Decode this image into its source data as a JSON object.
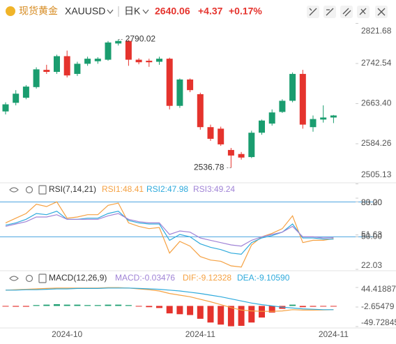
{
  "header": {
    "name": "现货黄金",
    "symbol": "XAUUSD",
    "period": "日K",
    "price": "2640.06",
    "change": "+4.37",
    "change_pct": "+0.17%"
  },
  "chart_data": [
    {
      "type": "candlestick",
      "up_color": "#1a9d6f",
      "down_color": "#e5332d",
      "open": [
        2648,
        2665,
        2675,
        2696,
        2730,
        2726,
        2757,
        2722,
        2742,
        2747,
        2750,
        2782,
        2787,
        2750,
        2748,
        2746,
        2752,
        2659,
        2711,
        2682,
        2617,
        2614,
        2572,
        2564,
        2558,
        2606,
        2624,
        2647,
        2669,
        2722,
        2617,
        2632,
        2636
      ],
      "high": [
        2666,
        2690,
        2700,
        2735,
        2740,
        2760,
        2768,
        2746,
        2756,
        2755,
        2787,
        2790.02,
        2789,
        2753,
        2752,
        2756,
        2754,
        2713,
        2713,
        2685,
        2622,
        2618,
        2576,
        2568,
        2610,
        2632,
        2652,
        2672,
        2725,
        2730,
        2640,
        2660,
        2641
      ],
      "low": [
        2642,
        2660,
        2672,
        2693,
        2722,
        2722,
        2715,
        2718,
        2738,
        2742,
        2748,
        2778,
        2738,
        2741,
        2736,
        2740,
        2652,
        2655,
        2686,
        2612,
        2590,
        2580,
        2536.78,
        2553,
        2556,
        2602,
        2620,
        2645,
        2666,
        2614,
        2608,
        2626,
        2625
      ],
      "close": [
        2662,
        2683,
        2697,
        2731,
        2726,
        2757,
        2719,
        2742,
        2752,
        2752,
        2784,
        2787,
        2750,
        2745,
        2745,
        2752,
        2659,
        2711,
        2690,
        2617,
        2594,
        2583,
        2561,
        2557,
        2606,
        2630,
        2646,
        2669,
        2722,
        2622,
        2633,
        2636,
        2640.06
      ],
      "annotations": [
        {
          "value": 2790.02,
          "label": "2790.02",
          "of": "high"
        },
        {
          "value": 2536.78,
          "label": "2536.78",
          "of": "low"
        }
      ],
      "ylim": [
        2505.13,
        2821.68
      ],
      "yticks": [
        2821.68,
        2742.54,
        {
          "value": 2663.4,
          "label": "2663.40"
        },
        2584.26,
        2505.13
      ]
    },
    {
      "type": "line",
      "title": "RSI(7,14,21)",
      "series": [
        {
          "name": "RSI1:48.41",
          "color": "#f5a142",
          "values": [
            62,
            66,
            70,
            78,
            76,
            80,
            66,
            67,
            69,
            69,
            77,
            79,
            62,
            59,
            57,
            58,
            36,
            46,
            42,
            33,
            30,
            29,
            25,
            24,
            43,
            50,
            53,
            57,
            68,
            45,
            47,
            47,
            48.41
          ]
        },
        {
          "name": "RSI2:47.98",
          "color": "#2eaadc",
          "values": [
            60,
            62,
            65,
            70,
            69,
            72,
            65,
            65,
            66,
            66,
            70,
            72,
            64,
            62,
            61,
            61,
            47,
            52,
            50,
            44,
            41,
            39,
            36,
            35,
            45,
            49,
            51,
            54,
            61,
            49,
            49,
            48,
            47.98
          ]
        },
        {
          "name": "RSI3:49.24",
          "color": "#a083d6",
          "values": [
            59,
            61,
            63,
            67,
            67,
            69,
            65,
            65,
            65,
            65,
            68,
            70,
            65,
            63,
            62,
            62,
            52,
            55,
            54,
            49,
            47,
            45,
            43,
            42,
            47,
            50,
            52,
            54,
            59,
            50,
            50,
            49,
            49.24
          ]
        }
      ],
      "levels": [
        80,
        50
      ],
      "level_color": "#4aa3df",
      "ylim": [
        22.03,
        83.2
      ],
      "yticks": [
        {
          "value": 83.2,
          "label": "83.20"
        },
        {
          "value": 80,
          "label": "80.00"
        },
        51.63,
        {
          "value": 50,
          "label": "50.00"
        },
        22.03
      ]
    },
    {
      "type": "combo",
      "title": "MACD(12,26,9)",
      "up_color": "#1a9d6f",
      "down_color": "#e5332d",
      "series": [
        {
          "name": "MACD:-0.03476",
          "color": "#a083d6",
          "kind": "bar",
          "values": [
            -1,
            -2,
            -2,
            2,
            3,
            4,
            3,
            3,
            2,
            2,
            3,
            3,
            2,
            -1,
            -3,
            -5,
            -18,
            -20,
            -22,
            -31,
            -40,
            -45,
            -49,
            -48,
            -40,
            -28,
            -16,
            -7,
            3,
            -3,
            -2,
            -1,
            -0.03476
          ]
        },
        {
          "name": "DIF:-9.12328",
          "color": "#f5a142",
          "kind": "line",
          "values": [
            38,
            39,
            40,
            41,
            42,
            43,
            43,
            43,
            43,
            43,
            44,
            44,
            43,
            41,
            39,
            36,
            30,
            26,
            22,
            16,
            10,
            3,
            -4,
            -10,
            -12,
            -13,
            -13,
            -12,
            -9,
            -10,
            -10,
            -9.5,
            -9.12328
          ]
        },
        {
          "name": "DEA:-9.10590",
          "color": "#2eaadc",
          "kind": "line",
          "values": [
            38,
            38,
            39,
            39,
            40,
            41,
            41,
            42,
            42,
            42,
            43,
            43,
            43,
            42,
            41,
            40,
            38,
            36,
            33,
            30,
            26,
            22,
            17,
            12,
            7,
            3,
            0,
            -3,
            -5,
            -7,
            -8,
            -9,
            -9.1059
          ]
        }
      ],
      "categories": [
        null,
        null,
        null,
        null,
        null,
        null,
        "2024-10",
        null,
        null,
        null,
        null,
        null,
        null,
        null,
        null,
        null,
        null,
        null,
        null,
        "2024-11",
        null,
        null,
        null,
        null,
        null,
        null,
        null,
        null,
        null,
        null,
        null,
        null,
        "2024-11"
      ],
      "ylim": [
        -49.72845,
        44.41887
      ],
      "yticks": [
        44.41887,
        -2.65479,
        -49.72845
      ]
    }
  ]
}
